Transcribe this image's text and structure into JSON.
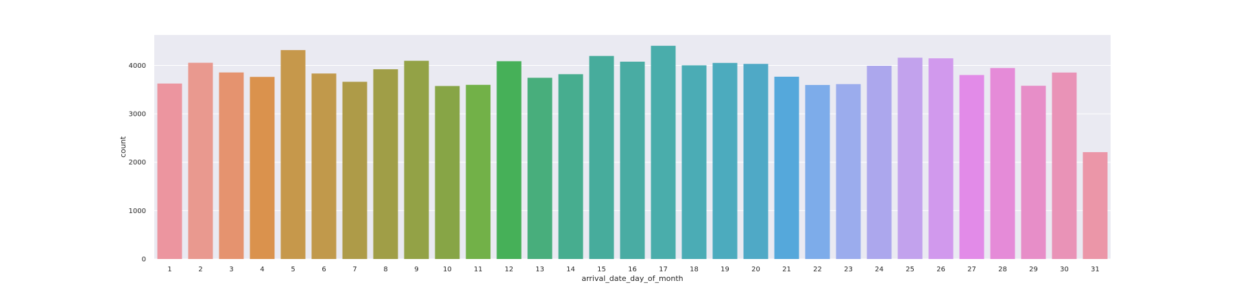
{
  "chart_data": {
    "type": "bar",
    "xlabel": "arrival_date_day_of_month",
    "ylabel": "count",
    "ylim": [
      0,
      4630
    ],
    "yticks": [
      0,
      1000,
      2000,
      3000,
      4000
    ],
    "grid": true,
    "categories": [
      "1",
      "2",
      "3",
      "4",
      "5",
      "6",
      "7",
      "8",
      "9",
      "10",
      "11",
      "12",
      "13",
      "14",
      "15",
      "16",
      "17",
      "18",
      "19",
      "20",
      "21",
      "22",
      "23",
      "24",
      "25",
      "26",
      "27",
      "28",
      "29",
      "30",
      "31"
    ],
    "values": [
      3626,
      4055,
      3855,
      3763,
      4317,
      3833,
      3662,
      3921,
      4096,
      3575,
      3599,
      4087,
      3745,
      3819,
      4196,
      4078,
      4406,
      4002,
      4052,
      4032,
      3767,
      3596,
      3614,
      3993,
      4160,
      4147,
      3802,
      3946,
      3580,
      3853,
      2208
    ],
    "colors": [
      "#ec959f",
      "#e9998f",
      "#e5936f",
      "#da924d",
      "#c6984b",
      "#c1994b",
      "#ae9b48",
      "#a09e47",
      "#93a246",
      "#87a546",
      "#72b148",
      "#46b058",
      "#48ae7c",
      "#47ad8f",
      "#47ac9c",
      "#49aca3",
      "#4aadab",
      "#4bacb5",
      "#4cabbe",
      "#4fa9c6",
      "#55a8db",
      "#7dacea",
      "#9baced",
      "#aca7ed",
      "#c2a2ed",
      "#d199ed",
      "#e28be8",
      "#e58bd8",
      "#e78ec8",
      "#e993b7",
      "#eb96a8"
    ]
  }
}
